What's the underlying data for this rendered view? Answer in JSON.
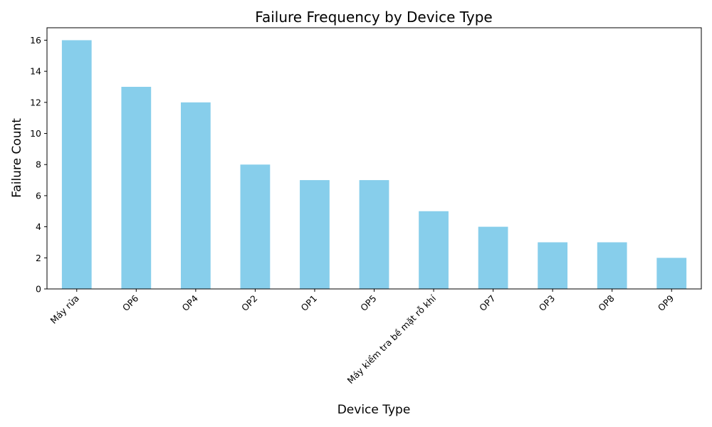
{
  "chart_data": {
    "type": "bar",
    "title": "Failure Frequency by Device Type",
    "xlabel": "Device Type",
    "ylabel": "Failure Count",
    "categories": [
      "Máy rửa",
      "OP6",
      "OP4",
      "OP2",
      "OP1",
      "OP5",
      "Máy kiểm tra bề mặt rỗ khí",
      "OP7",
      "OP3",
      "OP8",
      "OP9"
    ],
    "values": [
      16,
      13,
      12,
      8,
      7,
      7,
      5,
      4,
      3,
      3,
      2
    ],
    "ylim": [
      0,
      16.8
    ],
    "yticks": [
      0,
      2,
      4,
      6,
      8,
      10,
      12,
      14,
      16
    ],
    "bar_color": "#87ceeb",
    "grid": false,
    "legend": "none"
  }
}
